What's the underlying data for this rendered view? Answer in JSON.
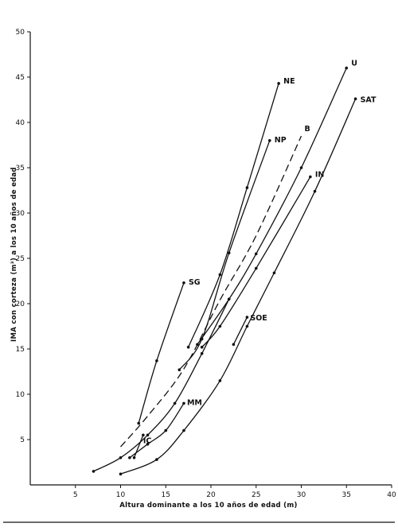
{
  "chart_data": {
    "type": "line",
    "title": "",
    "xlabel": "Altura dominante a los 10 años de edad (m)",
    "ylabel": "IMA con corteza (m³) a los 10 años de edad",
    "xlim": [
      0,
      40
    ],
    "ylim": [
      0,
      50
    ],
    "xticks": [
      5,
      10,
      15,
      20,
      25,
      30,
      35,
      40
    ],
    "yticks": [
      5,
      10,
      15,
      20,
      25,
      30,
      35,
      40,
      45,
      50
    ],
    "grid": false,
    "series": [
      {
        "name": "SG",
        "style": "solid",
        "points": [
          [
            12,
            6.8
          ],
          [
            14,
            13.7
          ],
          [
            17,
            22.3
          ]
        ]
      },
      {
        "name": "IC",
        "style": "solid",
        "points": [
          [
            11.5,
            3.0
          ],
          [
            12.5,
            5.5
          ]
        ]
      },
      {
        "name": "MM",
        "style": "solid",
        "points": [
          [
            11,
            3.0
          ],
          [
            13,
            4.5
          ],
          [
            15,
            6.0
          ],
          [
            17,
            9.0
          ]
        ]
      },
      {
        "name": "NE",
        "style": "solid",
        "points": [
          [
            17.5,
            15.2
          ],
          [
            21,
            23.2
          ],
          [
            24,
            32.8
          ],
          [
            27.5,
            44.3
          ]
        ]
      },
      {
        "name": "NP",
        "style": "solid",
        "points": [
          [
            16.5,
            12.7
          ],
          [
            19,
            16.1
          ],
          [
            22,
            25.6
          ],
          [
            26.5,
            38.0
          ]
        ]
      },
      {
        "name": "B",
        "style": "dashed",
        "points": [
          [
            10,
            4.2
          ],
          [
            13,
            7.6
          ],
          [
            17,
            12.8
          ],
          [
            21,
            20.4
          ],
          [
            25,
            27.5
          ],
          [
            30,
            38.5
          ]
        ]
      },
      {
        "name": "U",
        "style": "solid",
        "points": [
          [
            18.5,
            15.5
          ],
          [
            22,
            20.5
          ],
          [
            25,
            25.5
          ],
          [
            30,
            35.0
          ],
          [
            35,
            46.0
          ]
        ]
      },
      {
        "name": "IN",
        "style": "solid",
        "points": [
          [
            19,
            15.2
          ],
          [
            21,
            17.5
          ],
          [
            25,
            23.9
          ],
          [
            31,
            34.0
          ]
        ]
      },
      {
        "name": "SAT",
        "style": "solid",
        "points": [
          [
            10,
            1.2
          ],
          [
            14,
            2.8
          ],
          [
            17,
            6.0
          ],
          [
            21,
            11.5
          ],
          [
            24,
            17.5
          ],
          [
            27,
            23.4
          ],
          [
            31.5,
            32.4
          ],
          [
            36,
            42.6
          ]
        ]
      },
      {
        "name": "SOE",
        "style": "solid",
        "points": [
          [
            22.5,
            15.5
          ],
          [
            24,
            18.5
          ]
        ]
      },
      {
        "name": "",
        "style": "solid",
        "points": [
          [
            7,
            1.5
          ],
          [
            10,
            3.0
          ],
          [
            13,
            5.5
          ],
          [
            16,
            9.0
          ],
          [
            19,
            14.5
          ],
          [
            22,
            20.5
          ]
        ]
      }
    ]
  }
}
